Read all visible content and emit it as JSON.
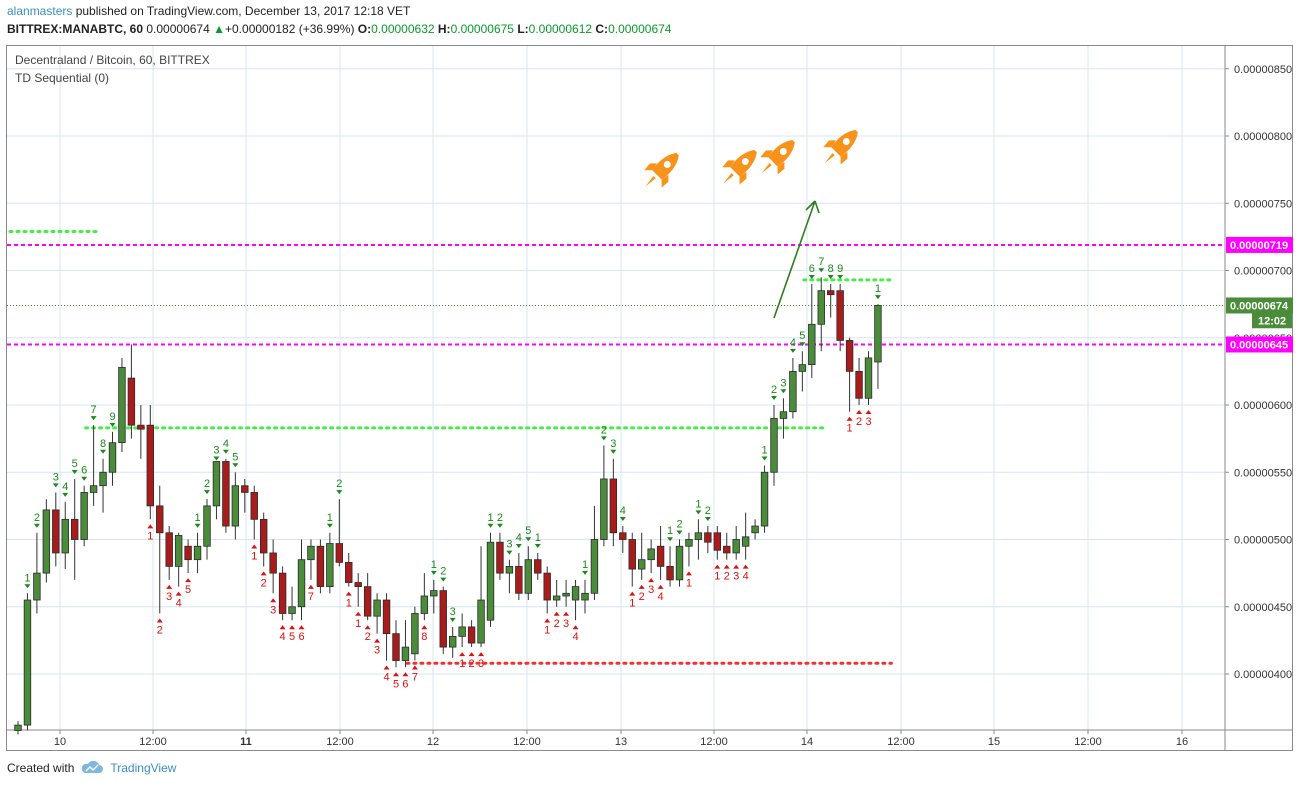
{
  "header": {
    "author": "alanmasters",
    "published_text": " published on TradingView.com, December 13, 2017 12:18 VET",
    "symbol_line": "BITTREX:MANABTC, 60",
    "last_price": "0.00000674",
    "change_arrow": "▲",
    "change": "+0.00000182 (+36.99%)",
    "ohlc": {
      "o_label": "O:",
      "o": "0.00000632",
      "h_label": "H:",
      "h": "0.00000675",
      "l_label": "L:",
      "l": "0.00000612",
      "c_label": "C:",
      "c": "0.00000674"
    }
  },
  "legend": {
    "pair": "Decentraland / Bitcoin, 60, BITTREX",
    "indicator": "TD Sequential (0)"
  },
  "footer": {
    "created_with": "Created with",
    "brand": "TradingView"
  },
  "colors": {
    "bull": "#4a8c3a",
    "bear": "#a81c1c",
    "magenta": "#ff00ff",
    "green_dots": "#44ee44",
    "red_dots": "#ee3333",
    "grid": "#d6e6f5",
    "arrow": "#2e7d1f",
    "rocket": "#f7931a",
    "td_buy": "#dd1111",
    "td_sell": "#1a8a1a"
  },
  "chart_data": {
    "type": "candlestick",
    "y_axis_ticks": [
      "0.00000400",
      "0.00000450",
      "0.00000500",
      "0.00000550",
      "0.00000600",
      "0.00000650",
      "0.00000700",
      "0.00000750",
      "0.00000800",
      "0.00000850"
    ],
    "ylim": [
      3.6e-06,
      8.8e-06
    ],
    "x_axis_ticks": [
      "10",
      "12:00",
      "11",
      "12:00",
      "12",
      "12:00",
      "13",
      "12:00",
      "14",
      "12:00",
      "15",
      "12:00",
      "16"
    ],
    "price_labels": [
      {
        "text": "0.00000719",
        "value": 7.19e-06,
        "color": "#ff00ff"
      },
      {
        "text": "0.00000674",
        "value": 6.74e-06,
        "color": "#4a8c3a"
      },
      {
        "text": "12:02",
        "value": 6.63e-06,
        "color": "#4a8c3a"
      },
      {
        "text": "0.00000645",
        "value": 6.45e-06,
        "color": "#ff00ff"
      }
    ],
    "horizontal_lines": [
      {
        "name": "resistance",
        "value": 7.19e-06,
        "style": "dashed",
        "color": "#ff00ff"
      },
      {
        "name": "support",
        "value": 6.45e-06,
        "style": "dashed",
        "color": "#ff00ff"
      },
      {
        "name": "last-price",
        "value": 6.74e-06,
        "style": "dotted",
        "color": "#4a8c3a"
      }
    ],
    "td_levels": [
      {
        "color": "green",
        "value": 7.29e-06,
        "from": 0,
        "to": 8
      },
      {
        "color": "green",
        "value": 5.83e-06,
        "from": 8,
        "to": 85
      },
      {
        "color": "red",
        "value": 4.08e-06,
        "from": 42,
        "to": 92
      },
      {
        "color": "green",
        "value": 6.93e-06,
        "from": 84,
        "to": 92
      }
    ],
    "candles": [
      {
        "o": 3.58e-06,
        "h": 3.65e-06,
        "l": 3.55e-06,
        "c": 3.62e-06
      },
      {
        "o": 3.62e-06,
        "h": 4.6e-06,
        "l": 3.58e-06,
        "c": 4.55e-06
      },
      {
        "o": 4.55e-06,
        "h": 5.05e-06,
        "l": 4.45e-06,
        "c": 4.75e-06
      },
      {
        "o": 4.75e-06,
        "h": 5.3e-06,
        "l": 4.68e-06,
        "c": 5.22e-06
      },
      {
        "o": 5.22e-06,
        "h": 5.35e-06,
        "l": 4.8e-06,
        "c": 4.9e-06
      },
      {
        "o": 4.9e-06,
        "h": 5.28e-06,
        "l": 4.78e-06,
        "c": 5.15e-06
      },
      {
        "o": 5.15e-06,
        "h": 5.45e-06,
        "l": 4.7e-06,
        "c": 5e-06
      },
      {
        "o": 5e-06,
        "h": 5.4e-06,
        "l": 4.95e-06,
        "c": 5.35e-06
      },
      {
        "o": 5.35e-06,
        "h": 5.85e-06,
        "l": 5.25e-06,
        "c": 5.4e-06
      },
      {
        "o": 5.4e-06,
        "h": 5.6e-06,
        "l": 5.2e-06,
        "c": 5.5e-06
      },
      {
        "o": 5.5e-06,
        "h": 5.8e-06,
        "l": 5.4e-06,
        "c": 5.72e-06
      },
      {
        "o": 5.72e-06,
        "h": 6.35e-06,
        "l": 5.65e-06,
        "c": 6.28e-06
      },
      {
        "o": 6.2e-06,
        "h": 6.45e-06,
        "l": 5.75e-06,
        "c": 5.85e-06
      },
      {
        "o": 5.85e-06,
        "h": 6e-06,
        "l": 5.6e-06,
        "c": 5.82e-06
      },
      {
        "o": 5.85e-06,
        "h": 6e-06,
        "l": 5.15e-06,
        "c": 5.25e-06
      },
      {
        "o": 5.25e-06,
        "h": 5.4e-06,
        "l": 4.45e-06,
        "c": 5.05e-06
      },
      {
        "o": 5.05e-06,
        "h": 5.1e-06,
        "l": 4.7e-06,
        "c": 4.8e-06
      },
      {
        "o": 4.8e-06,
        "h": 5.05e-06,
        "l": 4.65e-06,
        "c": 5.03e-06
      },
      {
        "o": 4.95e-06,
        "h": 5e-06,
        "l": 4.75e-06,
        "c": 4.85e-06
      },
      {
        "o": 4.85e-06,
        "h": 5.05e-06,
        "l": 4.75e-06,
        "c": 4.95e-06
      },
      {
        "o": 4.95e-06,
        "h": 5.3e-06,
        "l": 4.85e-06,
        "c": 5.25e-06
      },
      {
        "o": 5.25e-06,
        "h": 5.55e-06,
        "l": 5.15e-06,
        "c": 5.58e-06
      },
      {
        "o": 5.58e-06,
        "h": 5.6e-06,
        "l": 5.05e-06,
        "c": 5.1e-06
      },
      {
        "o": 5.1e-06,
        "h": 5.5e-06,
        "l": 5e-06,
        "c": 5.4e-06
      },
      {
        "o": 5.4e-06,
        "h": 5.45e-06,
        "l": 5.2e-06,
        "c": 5.35e-06
      },
      {
        "o": 5.35e-06,
        "h": 5.4e-06,
        "l": 5e-06,
        "c": 5.15e-06
      },
      {
        "o": 5.15e-06,
        "h": 5.2e-06,
        "l": 4.8e-06,
        "c": 4.9e-06
      },
      {
        "o": 4.9e-06,
        "h": 5e-06,
        "l": 4.6e-06,
        "c": 4.75e-06
      },
      {
        "o": 4.75e-06,
        "h": 4.8e-06,
        "l": 4.4e-06,
        "c": 4.45e-06
      },
      {
        "o": 4.45e-06,
        "h": 4.65e-06,
        "l": 4.4e-06,
        "c": 4.5e-06
      },
      {
        "o": 4.5e-06,
        "h": 5e-06,
        "l": 4.4e-06,
        "c": 4.85e-06
      },
      {
        "o": 4.85e-06,
        "h": 5e-06,
        "l": 4.7e-06,
        "c": 4.95e-06
      },
      {
        "o": 4.95e-06,
        "h": 5e-06,
        "l": 4.6e-06,
        "c": 4.65e-06
      },
      {
        "o": 4.65e-06,
        "h": 5.05e-06,
        "l": 4.6e-06,
        "c": 4.97e-06
      },
      {
        "o": 4.97e-06,
        "h": 5.3e-06,
        "l": 4.8e-06,
        "c": 4.83e-06
      },
      {
        "o": 4.83e-06,
        "h": 4.9e-06,
        "l": 4.65e-06,
        "c": 4.68e-06
      },
      {
        "o": 4.68e-06,
        "h": 4.75e-06,
        "l": 4.5e-06,
        "c": 4.65e-06
      },
      {
        "o": 4.65e-06,
        "h": 4.75e-06,
        "l": 4.4e-06,
        "c": 4.43e-06
      },
      {
        "o": 4.43e-06,
        "h": 4.6e-06,
        "l": 4.3e-06,
        "c": 4.55e-06
      },
      {
        "o": 4.55e-06,
        "h": 4.6e-06,
        "l": 4.1e-06,
        "c": 4.3e-06
      },
      {
        "o": 4.3e-06,
        "h": 4.4e-06,
        "l": 4.05e-06,
        "c": 4.1e-06
      },
      {
        "o": 4.1e-06,
        "h": 4.4e-06,
        "l": 4.05e-06,
        "c": 4.2e-06
      },
      {
        "o": 4.15e-06,
        "h": 4.5e-06,
        "l": 4.1e-06,
        "c": 4.45e-06
      },
      {
        "o": 4.45e-06,
        "h": 4.75e-06,
        "l": 4.4e-06,
        "c": 4.58e-06
      },
      {
        "o": 4.58e-06,
        "h": 4.7e-06,
        "l": 4.45e-06,
        "c": 4.62e-06
      },
      {
        "o": 4.62e-06,
        "h": 4.65e-06,
        "l": 4.15e-06,
        "c": 4.2e-06
      },
      {
        "o": 4.2e-06,
        "h": 4.35e-06,
        "l": 4.12e-06,
        "c": 4.28e-06
      },
      {
        "o": 4.28e-06,
        "h": 4.45e-06,
        "l": 4.2e-06,
        "c": 4.35e-06
      },
      {
        "o": 4.35e-06,
        "h": 4.4e-06,
        "l": 4.2e-06,
        "c": 4.23e-06
      },
      {
        "o": 4.23e-06,
        "h": 4.95e-06,
        "l": 4.2e-06,
        "c": 4.55e-06
      },
      {
        "o": 4.4e-06,
        "h": 5.05e-06,
        "l": 4.35e-06,
        "c": 4.98e-06
      },
      {
        "o": 4.98e-06,
        "h": 5.05e-06,
        "l": 4.7e-06,
        "c": 4.75e-06
      },
      {
        "o": 4.75e-06,
        "h": 4.85e-06,
        "l": 4.6e-06,
        "c": 4.8e-06
      },
      {
        "o": 4.8e-06,
        "h": 4.9e-06,
        "l": 4.55e-06,
        "c": 4.6e-06
      },
      {
        "o": 4.6e-06,
        "h": 4.95e-06,
        "l": 4.55e-06,
        "c": 4.85e-06
      },
      {
        "o": 4.85e-06,
        "h": 4.9e-06,
        "l": 4.7e-06,
        "c": 4.75e-06
      },
      {
        "o": 4.75e-06,
        "h": 4.8e-06,
        "l": 4.45e-06,
        "c": 4.55e-06
      },
      {
        "o": 4.55e-06,
        "h": 4.7e-06,
        "l": 4.5e-06,
        "c": 4.58e-06
      },
      {
        "o": 4.58e-06,
        "h": 4.7e-06,
        "l": 4.5e-06,
        "c": 4.6e-06
      },
      {
        "o": 4.55e-06,
        "h": 4.7e-06,
        "l": 4.4e-06,
        "c": 4.65e-06
      },
      {
        "o": 4.55e-06,
        "h": 4.7e-06,
        "l": 4.45e-06,
        "c": 4.6e-06
      },
      {
        "o": 4.6e-06,
        "h": 5.25e-06,
        "l": 4.55e-06,
        "c": 5e-06
      },
      {
        "o": 5e-06,
        "h": 5.7e-06,
        "l": 4.95e-06,
        "c": 5.45e-06
      },
      {
        "o": 5.45e-06,
        "h": 5.6e-06,
        "l": 4.95e-06,
        "c": 5.05e-06
      },
      {
        "o": 5.05e-06,
        "h": 5.1e-06,
        "l": 4.9e-06,
        "c": 5e-06
      },
      {
        "o": 5e-06,
        "h": 5.05e-06,
        "l": 4.65e-06,
        "c": 4.78e-06
      },
      {
        "o": 4.78e-06,
        "h": 5.05e-06,
        "l": 4.7e-06,
        "c": 4.85e-06
      },
      {
        "o": 4.85e-06,
        "h": 5e-06,
        "l": 4.75e-06,
        "c": 4.93e-06
      },
      {
        "o": 4.95e-06,
        "h": 5.1e-06,
        "l": 4.7e-06,
        "c": 4.8e-06
      },
      {
        "o": 4.8e-06,
        "h": 4.95e-06,
        "l": 4.65e-06,
        "c": 4.7e-06
      },
      {
        "o": 4.7e-06,
        "h": 5e-06,
        "l": 4.65e-06,
        "c": 4.95e-06
      },
      {
        "o": 4.95e-06,
        "h": 5.05e-06,
        "l": 4.8e-06,
        "c": 5e-06
      },
      {
        "o": 5e-06,
        "h": 5.15e-06,
        "l": 4.85e-06,
        "c": 5.05e-06
      },
      {
        "o": 5.05e-06,
        "h": 5.1e-06,
        "l": 4.9e-06,
        "c": 4.98e-06
      },
      {
        "o": 5.05e-06,
        "h": 5.1e-06,
        "l": 4.85e-06,
        "c": 4.92e-06
      },
      {
        "o": 4.95e-06,
        "h": 5.05e-06,
        "l": 4.85e-06,
        "c": 4.9e-06
      },
      {
        "o": 4.9e-06,
        "h": 5.1e-06,
        "l": 4.85e-06,
        "c": 5e-06
      },
      {
        "o": 4.95e-06,
        "h": 5.2e-06,
        "l": 4.85e-06,
        "c": 5.02e-06
      },
      {
        "o": 5.05e-06,
        "h": 5.15e-06,
        "l": 5e-06,
        "c": 5.1e-06
      },
      {
        "o": 5.1e-06,
        "h": 5.55e-06,
        "l": 5.05e-06,
        "c": 5.5e-06
      },
      {
        "o": 5.5e-06,
        "h": 6e-06,
        "l": 5.4e-06,
        "c": 5.9e-06
      },
      {
        "o": 5.9e-06,
        "h": 6.05e-06,
        "l": 5.75e-06,
        "c": 5.95e-06
      },
      {
        "o": 5.95e-06,
        "h": 6.35e-06,
        "l": 5.9e-06,
        "c": 6.25e-06
      },
      {
        "o": 6.25e-06,
        "h": 6.4e-06,
        "l": 6.1e-06,
        "c": 6.3e-06
      },
      {
        "o": 6.3e-06,
        "h": 6.9e-06,
        "l": 6.2e-06,
        "c": 6.6e-06
      },
      {
        "o": 6.6e-06,
        "h": 6.95e-06,
        "l": 6.4e-06,
        "c": 6.85e-06
      },
      {
        "o": 6.85e-06,
        "h": 6.9e-06,
        "l": 6.65e-06,
        "c": 6.82e-06
      },
      {
        "o": 6.85e-06,
        "h": 6.9e-06,
        "l": 6.4e-06,
        "c": 6.48e-06
      },
      {
        "o": 6.48e-06,
        "h": 6.5e-06,
        "l": 5.95e-06,
        "c": 6.25e-06
      },
      {
        "o": 6.25e-06,
        "h": 6.35e-06,
        "l": 6e-06,
        "c": 6.05e-06
      },
      {
        "o": 6.05e-06,
        "h": 6.4e-06,
        "l": 6e-06,
        "c": 6.35e-06
      },
      {
        "o": 6.32e-06,
        "h": 6.75e-06,
        "l": 6.12e-06,
        "c": 6.74e-06
      }
    ],
    "td_counts": [
      {
        "i": 1,
        "t": "1",
        "side": "up"
      },
      {
        "i": 2,
        "t": "2",
        "side": "up"
      },
      {
        "i": 4,
        "t": "3",
        "side": "up"
      },
      {
        "i": 5,
        "t": "4",
        "side": "up"
      },
      {
        "i": 6,
        "t": "5",
        "side": "up"
      },
      {
        "i": 7,
        "t": "6",
        "side": "up"
      },
      {
        "i": 8,
        "t": "7",
        "side": "up"
      },
      {
        "i": 9,
        "t": "8",
        "side": "up"
      },
      {
        "i": 10,
        "t": "9",
        "side": "up"
      },
      {
        "i": 14,
        "t": "1",
        "side": "down"
      },
      {
        "i": 15,
        "t": "2",
        "side": "down"
      },
      {
        "i": 16,
        "t": "3",
        "side": "down"
      },
      {
        "i": 17,
        "t": "4",
        "side": "down"
      },
      {
        "i": 18,
        "t": "5",
        "side": "down"
      },
      {
        "i": 19,
        "t": "1",
        "side": "up"
      },
      {
        "i": 20,
        "t": "2",
        "side": "up"
      },
      {
        "i": 21,
        "t": "3",
        "side": "up"
      },
      {
        "i": 22,
        "t": "4",
        "side": "up"
      },
      {
        "i": 23,
        "t": "5",
        "side": "up"
      },
      {
        "i": 25,
        "t": "1",
        "side": "down"
      },
      {
        "i": 26,
        "t": "2",
        "side": "down"
      },
      {
        "i": 27,
        "t": "3",
        "side": "down"
      },
      {
        "i": 28,
        "t": "4",
        "side": "down"
      },
      {
        "i": 29,
        "t": "5",
        "side": "down"
      },
      {
        "i": 30,
        "t": "6",
        "side": "down"
      },
      {
        "i": 31,
        "t": "7",
        "side": "down"
      },
      {
        "i": 33,
        "t": "1",
        "side": "up"
      },
      {
        "i": 34,
        "t": "2",
        "side": "up"
      },
      {
        "i": 35,
        "t": "1",
        "side": "down"
      },
      {
        "i": 36,
        "t": "1",
        "side": "down"
      },
      {
        "i": 37,
        "t": "2",
        "side": "down"
      },
      {
        "i": 38,
        "t": "3",
        "side": "down"
      },
      {
        "i": 39,
        "t": "4",
        "side": "down"
      },
      {
        "i": 40,
        "t": "5",
        "side": "down"
      },
      {
        "i": 41,
        "t": "6",
        "side": "down"
      },
      {
        "i": 42,
        "t": "7",
        "side": "down"
      },
      {
        "i": 43,
        "t": "8",
        "side": "down"
      },
      {
        "i": 44,
        "t": "1",
        "side": "up"
      },
      {
        "i": 45,
        "t": "2",
        "side": "up"
      },
      {
        "i": 46,
        "t": "3",
        "side": "up"
      },
      {
        "i": 47,
        "t": "1",
        "side": "down"
      },
      {
        "i": 48,
        "t": "2",
        "side": "down"
      },
      {
        "i": 49,
        "t": "3",
        "side": "down"
      },
      {
        "i": 50,
        "t": "1",
        "side": "up"
      },
      {
        "i": 51,
        "t": "2",
        "side": "up"
      },
      {
        "i": 52,
        "t": "3",
        "side": "up"
      },
      {
        "i": 53,
        "t": "4",
        "side": "up"
      },
      {
        "i": 54,
        "t": "5",
        "side": "up"
      },
      {
        "i": 55,
        "t": "1",
        "side": "up"
      },
      {
        "i": 56,
        "t": "1",
        "side": "down"
      },
      {
        "i": 57,
        "t": "2",
        "side": "down"
      },
      {
        "i": 58,
        "t": "3",
        "side": "down"
      },
      {
        "i": 59,
        "t": "4",
        "side": "down"
      },
      {
        "i": 60,
        "t": "1",
        "side": "up"
      },
      {
        "i": 62,
        "t": "2",
        "side": "up"
      },
      {
        "i": 63,
        "t": "3",
        "side": "up"
      },
      {
        "i": 64,
        "t": "4",
        "side": "up"
      },
      {
        "i": 65,
        "t": "1",
        "side": "down"
      },
      {
        "i": 66,
        "t": "2",
        "side": "down"
      },
      {
        "i": 67,
        "t": "3",
        "side": "down"
      },
      {
        "i": 68,
        "t": "4",
        "side": "down"
      },
      {
        "i": 69,
        "t": "1",
        "side": "up"
      },
      {
        "i": 70,
        "t": "2",
        "side": "up"
      },
      {
        "i": 71,
        "t": "1",
        "side": "down"
      },
      {
        "i": 72,
        "t": "1",
        "side": "up"
      },
      {
        "i": 73,
        "t": "2",
        "side": "up"
      },
      {
        "i": 74,
        "t": "1",
        "side": "down"
      },
      {
        "i": 75,
        "t": "2",
        "side": "down"
      },
      {
        "i": 76,
        "t": "3",
        "side": "down"
      },
      {
        "i": 77,
        "t": "4",
        "side": "down"
      },
      {
        "i": 79,
        "t": "1",
        "side": "up"
      },
      {
        "i": 80,
        "t": "2",
        "side": "up"
      },
      {
        "i": 81,
        "t": "3",
        "side": "up"
      },
      {
        "i": 82,
        "t": "4",
        "side": "up"
      },
      {
        "i": 83,
        "t": "5",
        "side": "up"
      },
      {
        "i": 84,
        "t": "6",
        "side": "up"
      },
      {
        "i": 85,
        "t": "7",
        "side": "up"
      },
      {
        "i": 86,
        "t": "8",
        "side": "up"
      },
      {
        "i": 87,
        "t": "9",
        "side": "up"
      },
      {
        "i": 88,
        "t": "1",
        "side": "down"
      },
      {
        "i": 89,
        "t": "2",
        "side": "down"
      },
      {
        "i": 90,
        "t": "3",
        "side": "down"
      },
      {
        "i": 91,
        "t": "1",
        "side": "up"
      }
    ],
    "annotations": [
      {
        "type": "arrow",
        "from_bar": 97,
        "from_value": 6.65e-06,
        "to_bar": 103,
        "to_value": 7.52e-06
      },
      {
        "type": "rocket-icon",
        "count": 4
      }
    ]
  }
}
